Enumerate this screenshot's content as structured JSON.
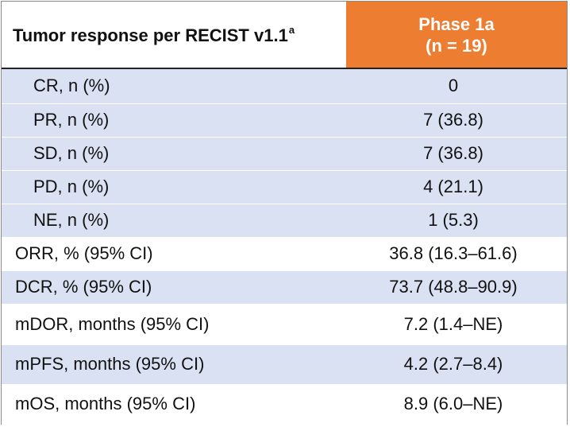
{
  "table": {
    "header_label": "Tumor response per RECIST v1.1",
    "header_sup": "a",
    "phase_title": "Phase 1a",
    "phase_n": "(n = 19)"
  },
  "rows": [
    {
      "label": "CR, n (%)",
      "value": "0"
    },
    {
      "label": "PR, n (%)",
      "value": "7 (36.8)"
    },
    {
      "label": "SD, n (%)",
      "value": "7 (36.8)"
    },
    {
      "label": "PD, n (%)",
      "value": "4 (21.1)"
    },
    {
      "label": "NE, n (%)",
      "value": "1 (5.3)"
    },
    {
      "label": "ORR, % (95% CI)",
      "value": "36.8 (16.3–61.6)"
    },
    {
      "label": "DCR, % (95% CI)",
      "value": "73.7 (48.8–90.9)"
    },
    {
      "label": "mDOR, months (95% CI)",
      "value": "7.2 (1.4–NE)"
    },
    {
      "label": "mPFS, months (95% CI)",
      "value": "4.2 (2.7–8.4)"
    },
    {
      "label": "mOS, months (95% CI)",
      "value": "8.9 (6.0–NE)"
    }
  ],
  "colors": {
    "header_accent": "#ed7d31",
    "row_band": "#d9e1f2"
  }
}
